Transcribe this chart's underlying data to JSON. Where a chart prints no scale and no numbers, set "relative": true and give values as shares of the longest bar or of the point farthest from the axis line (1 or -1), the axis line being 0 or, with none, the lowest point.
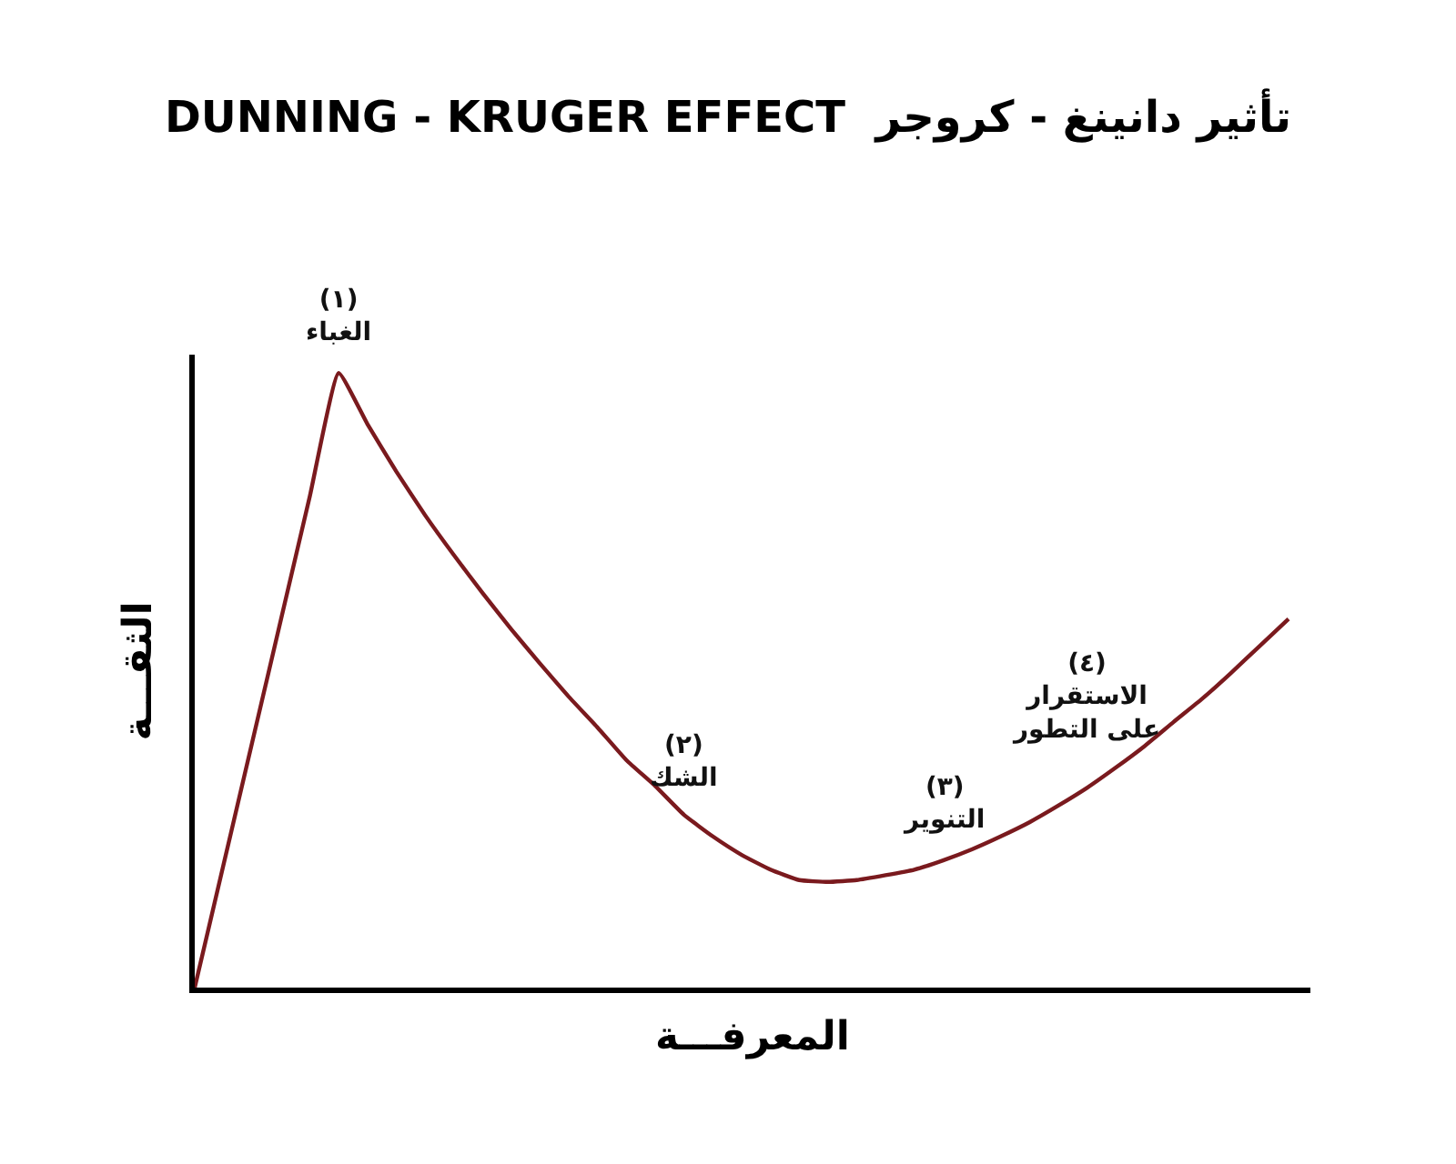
{
  "chart_data": {
    "type": "line",
    "relative": true,
    "title": "DUNNING - KRUGER EFFECT  تأثير دانينغ - كروجر",
    "xlabel": "المعرفـــة",
    "ylabel": "الثقـــة",
    "categories": [
      null,
      null,
      null,
      null,
      null,
      null,
      null,
      null,
      null,
      null,
      null,
      null,
      null,
      null,
      null,
      null,
      null,
      null,
      null,
      null,
      null,
      null,
      null,
      null,
      null,
      null,
      null,
      null,
      null,
      null,
      null,
      null,
      null,
      null,
      null,
      null,
      null,
      null,
      null
    ],
    "series": [
      {
        "color": "#7a1a1e",
        "values": [
          0,
          0.2,
          0.4,
          0.6,
          0.8,
          1.0,
          0.917,
          0.84,
          0.769,
          0.704,
          0.642,
          0.583,
          0.527,
          0.473,
          0.423,
          0.37,
          0.328,
          0.281,
          0.246,
          0.216,
          0.192,
          0.175,
          0.172,
          0.175,
          0.183,
          0.192,
          0.207,
          0.225,
          0.246,
          0.269,
          0.296,
          0.325,
          0.358,
          0.393,
          0.432,
          0.47,
          0.512,
          0.556,
          0.6
        ]
      }
    ],
    "annotations": [
      "(١)\nالغباء",
      "(٢)\nالشك",
      "(٣)\nالتنوير",
      "(٤)\nالاستقرار\nعلى التطور"
    ],
    "marker": "none",
    "line_style": "solid"
  }
}
